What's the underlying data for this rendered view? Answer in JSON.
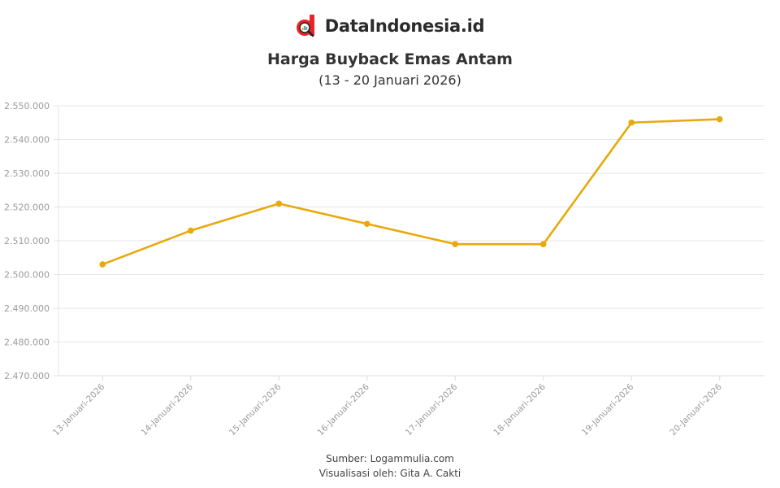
{
  "brand": {
    "name": "DataIndonesia.id",
    "logo_icon": "dataindonesia-logo-icon",
    "logo_color": "#e8232a"
  },
  "header": {
    "title": "Harga Buyback Emas Antam",
    "subtitle": "(13 - 20 Januari 2026)"
  },
  "footer": {
    "source": "Sumber: Logammulia.com",
    "credit": "Visualisasi oleh: Gita A. Cakti"
  },
  "colors": {
    "line": "#e8a90c",
    "grid": "#e6e6e6",
    "axis_text": "#9a9a9a"
  },
  "chart_data": {
    "type": "line",
    "title": "Harga Buyback Emas Antam",
    "subtitle": "(13 - 20 Januari 2026)",
    "xlabel": "",
    "ylabel": "",
    "categories": [
      "13-Januari-2026",
      "14-Januari-2026",
      "15-Januari-2026",
      "16-Januari-2026",
      "17-Januari-2026",
      "18-Januari-2026",
      "19-Januari-2026",
      "20-Januari-2026"
    ],
    "series": [
      {
        "name": "Harga Buyback",
        "values": [
          2503000,
          2513000,
          2521000,
          2515000,
          2509000,
          2509000,
          2545000,
          2546000
        ]
      }
    ],
    "ylim": [
      2470000,
      2550000
    ],
    "yticks": [
      2470000,
      2480000,
      2490000,
      2500000,
      2510000,
      2520000,
      2530000,
      2540000,
      2550000
    ],
    "ytick_labels": [
      "2.470.000",
      "2.480.000",
      "2.490.000",
      "2.500.000",
      "2.510.000",
      "2.520.000",
      "2.530.000",
      "2.540.000",
      "2.550.000"
    ],
    "grid": true,
    "legend": "none",
    "markers": true
  }
}
